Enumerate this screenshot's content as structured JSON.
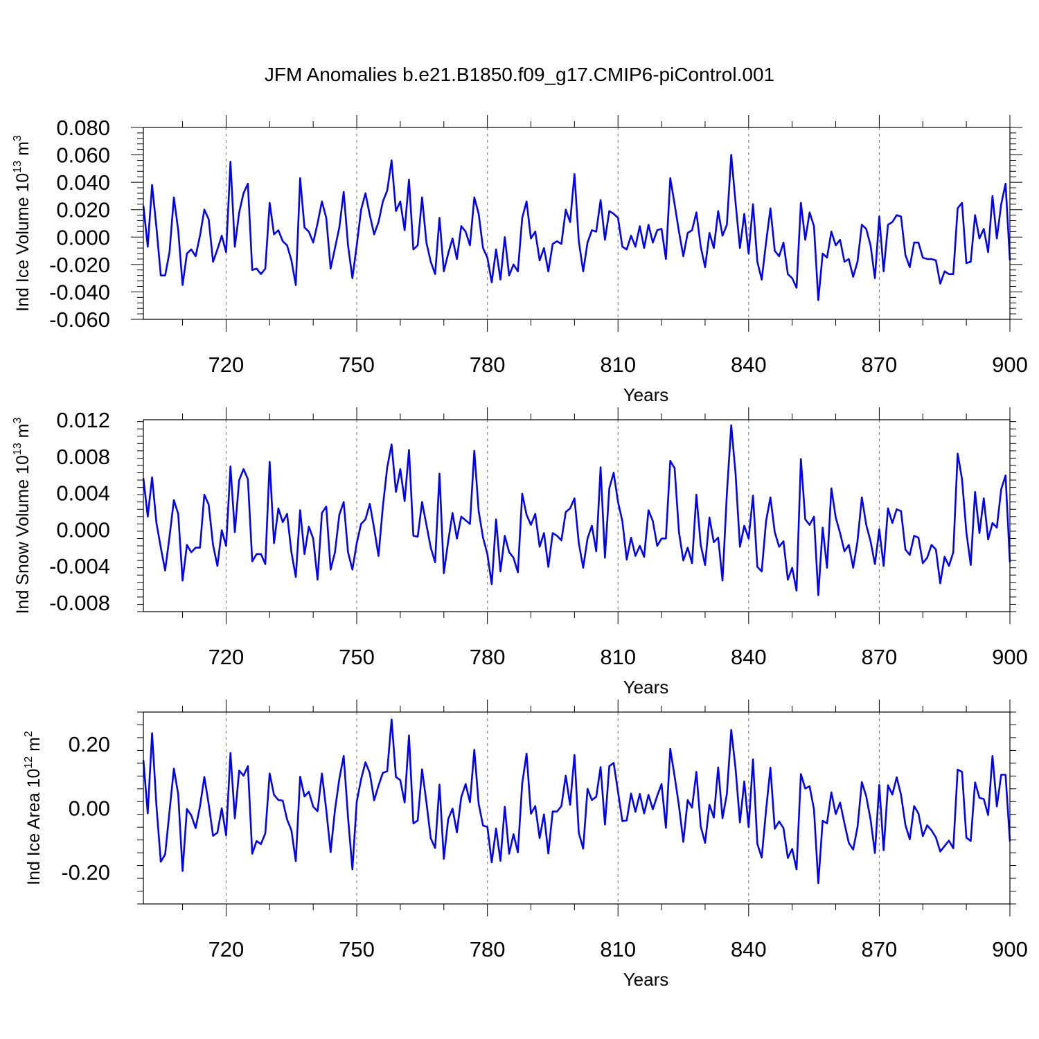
{
  "title": "JFM Anomalies b.e21.B1850.f09_g17.CMIP6-piControl.001",
  "line_color": "#0000ff",
  "chart_data": [
    {
      "type": "line",
      "ylabel_main": "Ind Ice Volume 10",
      "ylabel_exp": "13",
      "ylabel_unit": " m",
      "ylabel_unit_exp": "3",
      "xlabel": "Years",
      "xlim": [
        701,
        900
      ],
      "ylim": [
        -0.06,
        0.08
      ],
      "xticks": [
        720,
        750,
        780,
        810,
        840,
        870,
        900
      ],
      "xtick_labels": [
        "720",
        "750",
        "780",
        "810",
        "840",
        "870",
        "900"
      ],
      "yticks": [
        -0.06,
        -0.04,
        -0.02,
        0.0,
        0.02,
        0.04,
        0.06,
        0.08
      ],
      "ytick_labels": [
        "-0.060",
        "-0.040",
        "-0.020",
        "0.000",
        "0.020",
        "0.040",
        "0.060",
        "0.080"
      ],
      "grid_x": true,
      "series": [
        {
          "name": "Ind Ice Volume",
          "x_start": 701,
          "values": [
            0.023,
            -0.007,
            0.038,
            0.007,
            -0.028,
            -0.028,
            -0.011,
            0.029,
            0.005,
            -0.035,
            -0.012,
            -0.009,
            -0.014,
            0.001,
            0.02,
            0.013,
            -0.018,
            -0.009,
            0.001,
            -0.011,
            0.055,
            -0.007,
            0.018,
            0.032,
            0.039,
            -0.024,
            -0.023,
            -0.027,
            -0.023,
            0.025,
            0.002,
            0.005,
            -0.003,
            -0.006,
            -0.017,
            -0.035,
            0.043,
            0.007,
            0.004,
            -0.004,
            0.01,
            0.026,
            0.014,
            -0.023,
            -0.008,
            0.007,
            0.033,
            -0.006,
            -0.03,
            -0.006,
            0.02,
            0.032,
            0.016,
            0.002,
            0.011,
            0.026,
            0.034,
            0.056,
            0.019,
            0.026,
            0.005,
            0.042,
            -0.009,
            -0.006,
            0.029,
            -0.004,
            -0.018,
            -0.027,
            0.014,
            -0.025,
            -0.012,
            -0.001,
            -0.016,
            0.008,
            0.004,
            -0.006,
            0.029,
            0.017,
            -0.008,
            -0.015,
            -0.033,
            -0.009,
            -0.031,
            0.0,
            -0.028,
            -0.02,
            -0.025,
            0.014,
            0.026,
            -0.001,
            0.004,
            -0.017,
            -0.008,
            -0.025,
            -0.005,
            -0.003,
            -0.005,
            0.02,
            0.011,
            0.046,
            -0.003,
            -0.025,
            -0.004,
            0.005,
            0.004,
            0.027,
            -0.002,
            0.019,
            0.017,
            0.014,
            -0.007,
            -0.009,
            0.001,
            -0.007,
            0.008,
            -0.008,
            0.009,
            -0.004,
            0.005,
            0.006,
            -0.016,
            0.043,
            0.024,
            0.004,
            -0.014,
            0.003,
            0.005,
            0.018,
            -0.007,
            -0.022,
            0.003,
            -0.008,
            0.019,
            0.001,
            0.009,
            0.06,
            0.025,
            -0.008,
            0.017,
            -0.012,
            0.024,
            -0.018,
            -0.031,
            -0.004,
            0.021,
            -0.01,
            -0.014,
            -0.004,
            -0.027,
            -0.03,
            -0.037,
            0.025,
            -0.002,
            0.018,
            0.008,
            -0.046,
            -0.012,
            -0.015,
            0.004,
            -0.006,
            -0.002,
            -0.018,
            -0.016,
            -0.029,
            -0.018,
            0.009,
            0.006,
            -0.006,
            -0.03,
            0.015,
            -0.025,
            0.009,
            0.011,
            0.016,
            0.015,
            -0.013,
            -0.022,
            -0.004,
            -0.004,
            -0.015,
            -0.016,
            -0.016,
            -0.017,
            -0.034,
            -0.025,
            -0.027,
            -0.027,
            0.021,
            0.025,
            -0.019,
            -0.018,
            0.016,
            -0.001,
            0.006,
            -0.011,
            0.03,
            -0.001,
            0.024,
            0.039,
            -0.017
          ]
        }
      ]
    },
    {
      "type": "line",
      "ylabel_main": "Ind Snow Volume 10",
      "ylabel_exp": "13",
      "ylabel_unit": " m",
      "ylabel_unit_exp": "3",
      "xlabel": "Years",
      "xlim": [
        701,
        900
      ],
      "ylim": [
        -0.009,
        0.012
      ],
      "xticks": [
        720,
        750,
        780,
        810,
        840,
        870,
        900
      ],
      "xtick_labels": [
        "720",
        "750",
        "780",
        "810",
        "840",
        "870",
        "900"
      ],
      "yticks": [
        -0.008,
        -0.004,
        0.0,
        0.004,
        0.008,
        0.012
      ],
      "ytick_labels": [
        "-0.008",
        "-0.004",
        "0.000",
        "0.004",
        "0.008",
        "0.012"
      ],
      "grid_x": true,
      "series": [
        {
          "name": "Ind Snow Volume",
          "x_start": 701,
          "values": [
            0.0056,
            0.0014,
            0.0057,
            0.0007,
            -0.002,
            -0.0045,
            -0.0008,
            0.0032,
            0.0017,
            -0.0056,
            -0.0017,
            -0.0025,
            -0.002,
            -0.002,
            0.0038,
            0.0027,
            -0.0017,
            -0.004,
            -0.0001,
            -0.0018,
            0.0069,
            -0.0003,
            0.0054,
            0.0066,
            0.0055,
            -0.0035,
            -0.0027,
            -0.0027,
            -0.0038,
            0.0074,
            -0.0015,
            0.0023,
            0.0008,
            0.0017,
            -0.0025,
            -0.0052,
            0.0021,
            -0.0027,
            0.0003,
            -0.001,
            -0.0055,
            0.0018,
            0.0025,
            -0.0044,
            -0.0025,
            0.0016,
            0.003,
            -0.0025,
            -0.0044,
            -0.0015,
            0.0006,
            0.0011,
            0.0028,
            0.0001,
            -0.0029,
            0.0025,
            0.0068,
            0.0093,
            0.0041,
            0.0066,
            0.0031,
            0.0087,
            -0.0007,
            -0.0008,
            0.003,
            0.0005,
            -0.002,
            -0.0036,
            0.0061,
            -0.0048,
            -0.0013,
            0.0018,
            -0.001,
            0.0014,
            0.001,
            0.0006,
            0.0086,
            0.002,
            -0.0009,
            -0.0027,
            -0.006,
            0.0011,
            -0.0046,
            -0.0007,
            -0.0025,
            -0.0031,
            -0.0047,
            0.0039,
            0.0016,
            0.0005,
            0.0017,
            -0.0019,
            -0.0004,
            -0.0041,
            -0.0004,
            -0.0007,
            -0.0012,
            0.0019,
            0.0023,
            0.0034,
            -0.0015,
            -0.0042,
            -0.001,
            0.0004,
            -0.0024,
            0.0068,
            -0.0031,
            0.0045,
            0.0062,
            0.003,
            0.0009,
            -0.0033,
            -0.0009,
            -0.0029,
            -0.0018,
            -0.003,
            0.0021,
            0.0009,
            -0.0018,
            -0.001,
            -0.001,
            0.0075,
            0.0067,
            -0.0003,
            -0.0034,
            -0.002,
            -0.0037,
            0.0038,
            -0.0017,
            -0.0039,
            0.0013,
            -0.0014,
            -0.0009,
            -0.0056,
            0.0039,
            0.0114,
            0.0061,
            -0.0019,
            0.0004,
            -0.001,
            0.0037,
            -0.0041,
            -0.0046,
            0.0009,
            0.0035,
            -0.0003,
            -0.0019,
            -0.0013,
            -0.0055,
            -0.0042,
            -0.0067,
            0.0077,
            0.0011,
            0.0005,
            0.0014,
            -0.0072,
            0.0002,
            -0.0042,
            0.0045,
            0.0013,
            -0.0004,
            -0.0024,
            -0.0017,
            -0.0042,
            -0.0013,
            0.0035,
            0.0005,
            -0.0013,
            -0.0038,
            0.0,
            -0.004,
            0.0023,
            0.0007,
            0.0022,
            0.002,
            -0.0022,
            -0.0028,
            -0.0007,
            -0.0009,
            -0.0037,
            -0.0031,
            -0.0017,
            -0.0022,
            -0.0059,
            -0.003,
            -0.004,
            -0.0025,
            0.0083,
            0.0055,
            -0.0003,
            -0.0039,
            0.0041,
            -0.0004,
            0.0034,
            -0.0011,
            0.0007,
            0.0002,
            0.0044,
            0.0059,
            -0.0036
          ]
        }
      ]
    },
    {
      "type": "line",
      "ylabel_main": "Ind Ice Area 10",
      "ylabel_exp": "12",
      "ylabel_unit": " m",
      "ylabel_unit_exp": "2",
      "xlabel": "Years",
      "xlim": [
        701,
        900
      ],
      "ylim": [
        -0.3,
        0.3
      ],
      "xticks": [
        720,
        750,
        780,
        810,
        840,
        870,
        900
      ],
      "xtick_labels": [
        "720",
        "750",
        "780",
        "810",
        "840",
        "870",
        "900"
      ],
      "yticks": [
        -0.2,
        0.0,
        0.2
      ],
      "ytick_labels": [
        "-0.20",
        "0.00",
        "0.20"
      ],
      "grid_x": true,
      "series": [
        {
          "name": "Ind Ice Area",
          "x_start": 701,
          "values": [
            0.15,
            -0.017,
            0.234,
            0.007,
            -0.168,
            -0.145,
            -0.011,
            0.123,
            0.043,
            -0.197,
            -0.003,
            -0.023,
            -0.063,
            0.005,
            0.097,
            0.012,
            -0.087,
            -0.077,
            -0.001,
            -0.086,
            0.172,
            -0.032,
            0.117,
            0.101,
            0.131,
            -0.143,
            -0.103,
            -0.113,
            -0.079,
            0.108,
            0.041,
            0.025,
            0.023,
            -0.036,
            -0.07,
            -0.166,
            0.098,
            0.036,
            0.051,
            0.004,
            -0.01,
            0.108,
            -0.006,
            -0.138,
            -0.006,
            0.091,
            0.163,
            -0.029,
            -0.192,
            0.02,
            0.09,
            0.143,
            0.109,
            0.024,
            0.07,
            0.11,
            0.115,
            0.277,
            0.097,
            0.087,
            0.017,
            0.227,
            -0.048,
            -0.039,
            0.121,
            0.018,
            -0.095,
            -0.125,
            0.073,
            -0.159,
            -0.035,
            -0.002,
            -0.076,
            0.034,
            0.075,
            0.018,
            0.182,
            0.013,
            -0.055,
            -0.059,
            -0.17,
            -0.064,
            -0.165,
            0.004,
            -0.143,
            -0.082,
            -0.139,
            0.077,
            0.17,
            -0.018,
            0.006,
            -0.094,
            -0.02,
            -0.142,
            -0.011,
            -0.011,
            0.006,
            0.101,
            0.01,
            0.166,
            -0.078,
            -0.127,
            0.06,
            0.025,
            0.035,
            0.128,
            -0.052,
            0.131,
            0.141,
            0.051,
            -0.041,
            -0.039,
            0.045,
            -0.012,
            0.044,
            -0.017,
            0.041,
            -0.004,
            0.038,
            0.075,
            -0.062,
            0.185,
            0.099,
            0.007,
            -0.106,
            0.025,
            0.001,
            0.113,
            -0.058,
            -0.109,
            0.01,
            -0.03,
            0.127,
            -0.032,
            0.044,
            0.244,
            0.123,
            -0.045,
            0.083,
            -0.06,
            0.152,
            -0.112,
            -0.155,
            -0.007,
            0.126,
            -0.065,
            -0.042,
            -0.063,
            -0.156,
            -0.128,
            -0.192,
            0.106,
            0.061,
            0.068,
            -0.004,
            -0.235,
            -0.04,
            -0.048,
            0.049,
            -0.019,
            0.017,
            -0.048,
            -0.109,
            -0.13,
            -0.06,
            0.081,
            0.037,
            -0.036,
            -0.141,
            0.072,
            -0.132,
            0.071,
            0.042,
            0.096,
            0.041,
            -0.053,
            -0.098,
            0.006,
            -0.017,
            -0.088,
            -0.054,
            -0.07,
            -0.092,
            -0.136,
            -0.119,
            -0.102,
            -0.126,
            0.12,
            0.113,
            -0.093,
            -0.103,
            0.08,
            0.032,
            0.028,
            -0.022,
            0.163,
            0.005,
            0.104,
            0.104,
            -0.104
          ]
        }
      ]
    }
  ]
}
